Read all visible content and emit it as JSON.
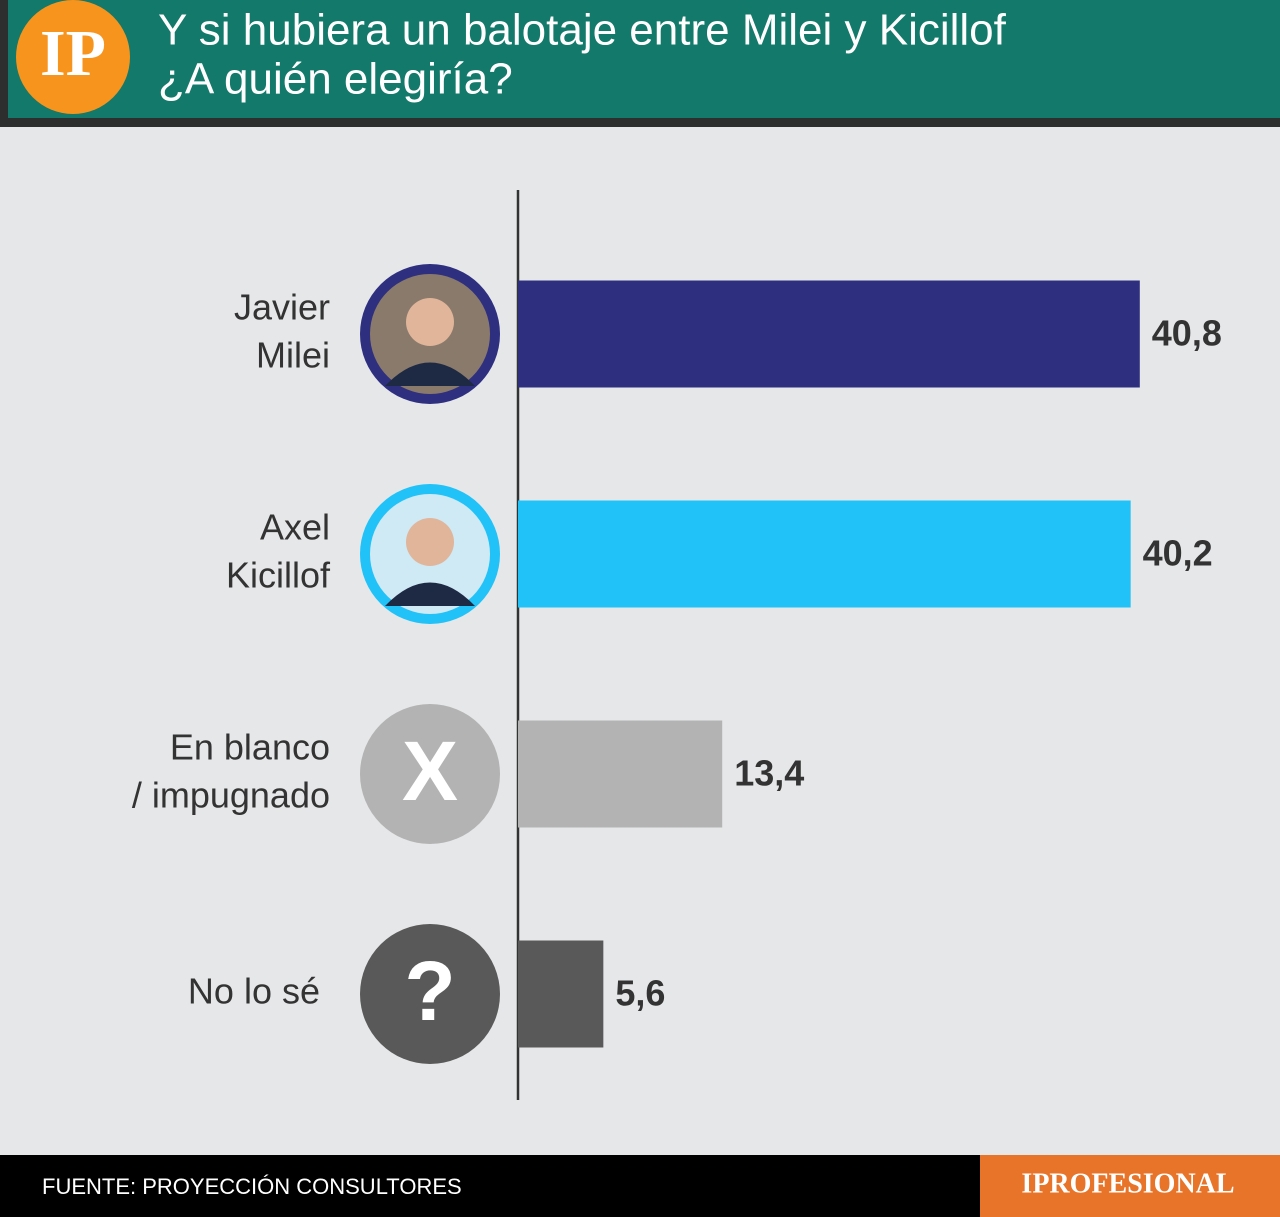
{
  "header": {
    "logo": "IP"
  },
  "chart_data": {
    "type": "bar",
    "orientation": "horizontal",
    "title": [
      "Y si hubiera un balotaje entre Milei y Kicillof",
      "¿A quién elegiría?"
    ],
    "categories": [
      [
        "Javier",
        "Milei"
      ],
      [
        "Axel",
        "Kicillof"
      ],
      [
        "En blanco",
        "/ impugnado"
      ],
      [
        "No lo sé"
      ]
    ],
    "values": [
      40.8,
      40.2,
      13.4,
      5.6
    ],
    "value_labels": [
      "40,8",
      "40,2",
      "13,4",
      "5,6"
    ],
    "colors": [
      "#2e2f7f",
      "#20c2f8",
      "#b3b3b3",
      "#595959"
    ],
    "icons": [
      null,
      null,
      "X",
      "?"
    ],
    "xlim": [
      0,
      50
    ]
  },
  "footer": {
    "source": "FUENTE: PROYECCIÓN CONSULTORES",
    "brand": "IPROFESIONAL"
  }
}
